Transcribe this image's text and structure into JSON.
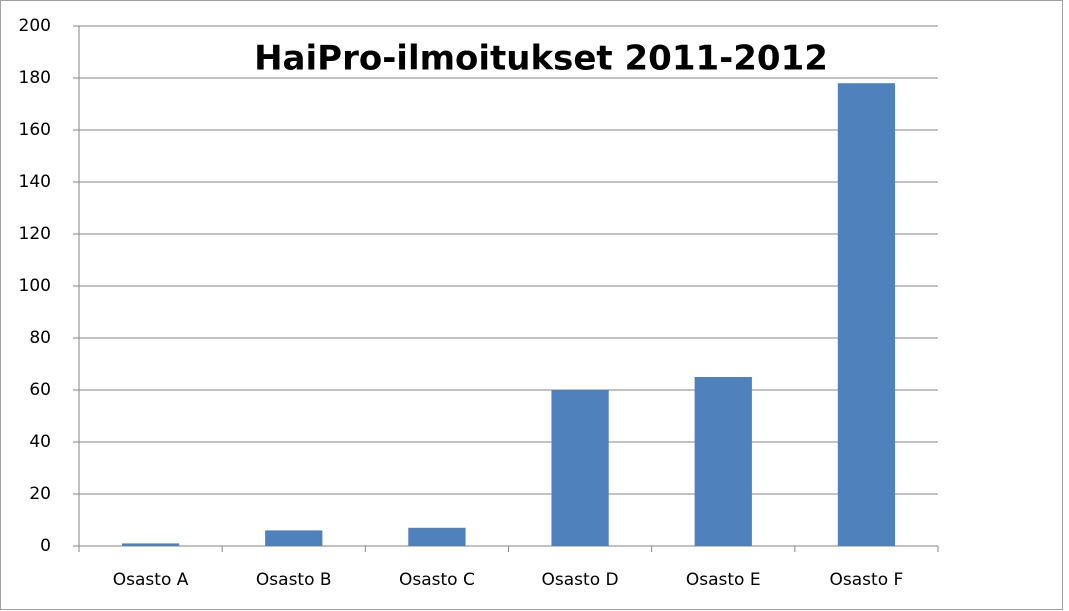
{
  "chart_data": {
    "type": "bar",
    "title": "HaiPro-ilmoitukset 2011-2012",
    "categories": [
      "Osasto A",
      "Osasto B",
      "Osasto C",
      "Osasto D",
      "Osasto E",
      "Osasto F"
    ],
    "values": [
      1,
      6,
      7,
      60,
      65,
      178
    ],
    "color": "#4f81bd",
    "ylim": [
      0,
      200
    ],
    "yticks": [
      0,
      20,
      40,
      60,
      80,
      100,
      120,
      140,
      160,
      180,
      200
    ],
    "grid": true
  }
}
